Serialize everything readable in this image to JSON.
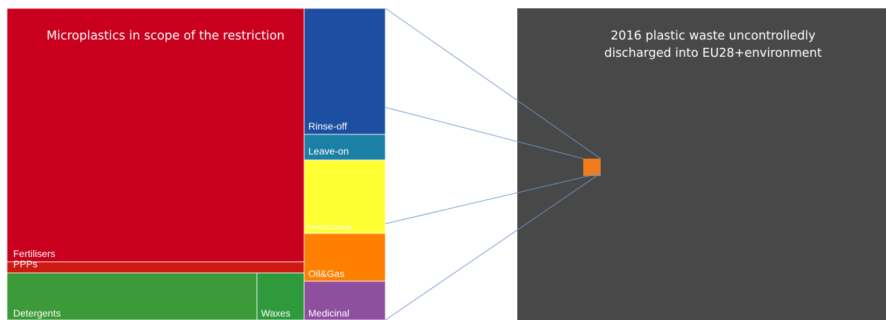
{
  "chart_data": [
    {
      "type": "treemap",
      "title": "Microplastics in scope of the restriction",
      "categories": [
        "Fertilisers",
        "PPPs",
        "Detergents",
        "Waxes",
        "Rinse-off",
        "Leave-on",
        "Paints&Coatings",
        "Oil&Gas",
        "Medicinal"
      ],
      "values": [
        36,
        1.5,
        12,
        1.3,
        7.2,
        1.4,
        4.1,
        2.7,
        2.1
      ],
      "colors": {
        "Fertilisers": "#c8001e",
        "PPPs": "#cc1a12",
        "Detergents": "#3d9a38",
        "Waxes": "#2f9a3c",
        "Rinse-off": "#1d4ea2",
        "Leave-on": "#1c7fa5",
        "Paints&Coatings": "#ffff33",
        "Oil&Gas": "#ff7f00",
        "Medicinal": "#8e4f9f"
      }
    },
    {
      "type": "area-comparison",
      "title": "2016 plastic waste uncontrolledly discharged into EU28+environment",
      "background_color": "#484848",
      "marker_color": "#f07c1e",
      "connector_color": "#6f97c9"
    }
  ]
}
